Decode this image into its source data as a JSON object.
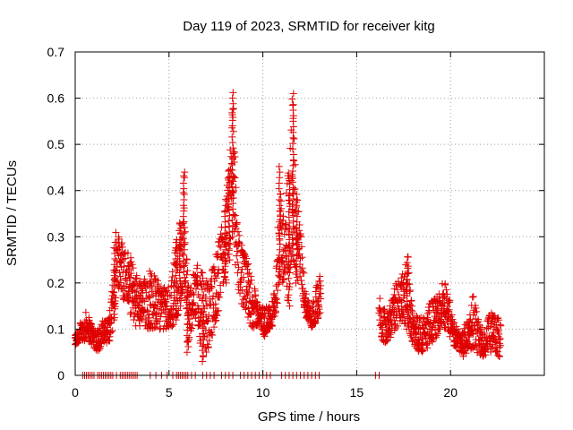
{
  "chart_data": {
    "type": "scatter",
    "title": "Day 119 of 2023, SRMTID for receiver kitg",
    "xlabel": "GPS time / hours",
    "ylabel": "SRMTID / TECUs",
    "xlim": [
      0,
      25
    ],
    "ylim": [
      0,
      0.7
    ],
    "grid": true,
    "marker": "+",
    "marker_color": "#e00000",
    "x_ticks": [
      0,
      5,
      10,
      15,
      20
    ],
    "y_ticks": [
      0,
      0.1,
      0.2,
      0.3,
      0.4,
      0.5,
      0.6,
      0.7
    ],
    "x_tick_labels": [
      "0",
      "5",
      "10",
      "15",
      "20"
    ],
    "y_tick_labels": [
      "0",
      "0.1",
      "0.2",
      "0.3",
      "0.4",
      "0.5",
      "0.6",
      "0.7"
    ],
    "series": [
      {
        "name": "SRMTID",
        "envelope": [
          [
            0.0,
            0.06,
            0.09
          ],
          [
            0.2,
            0.07,
            0.11
          ],
          [
            0.4,
            0.07,
            0.12
          ],
          [
            0.6,
            0.08,
            0.14
          ],
          [
            0.8,
            0.07,
            0.12
          ],
          [
            1.0,
            0.06,
            0.11
          ],
          [
            1.2,
            0.05,
            0.1
          ],
          [
            1.4,
            0.06,
            0.12
          ],
          [
            1.6,
            0.07,
            0.12
          ],
          [
            1.8,
            0.07,
            0.13
          ],
          [
            2.0,
            0.1,
            0.2
          ],
          [
            2.1,
            0.12,
            0.29
          ],
          [
            2.2,
            0.2,
            0.33
          ],
          [
            3.3,
            0.1,
            0.22
          ],
          [
            3.6,
            0.1,
            0.2
          ],
          [
            3.9,
            0.1,
            0.24
          ],
          [
            4.2,
            0.1,
            0.22
          ],
          [
            4.5,
            0.1,
            0.2
          ],
          [
            4.8,
            0.1,
            0.19
          ],
          [
            5.1,
            0.1,
            0.2
          ],
          [
            5.4,
            0.12,
            0.3
          ],
          [
            5.6,
            0.15,
            0.34
          ],
          [
            5.8,
            0.2,
            0.45
          ],
          [
            6.0,
            0.05,
            0.2
          ],
          [
            6.2,
            0.1,
            0.2
          ],
          [
            6.5,
            0.12,
            0.26
          ],
          [
            6.8,
            0.03,
            0.22
          ],
          [
            7.1,
            0.06,
            0.2
          ],
          [
            7.4,
            0.1,
            0.25
          ],
          [
            7.7,
            0.15,
            0.3
          ],
          [
            8.0,
            0.2,
            0.38
          ],
          [
            8.2,
            0.25,
            0.45
          ],
          [
            8.4,
            0.3,
            0.62
          ],
          [
            8.6,
            0.2,
            0.35
          ],
          [
            8.9,
            0.15,
            0.28
          ],
          [
            9.2,
            0.12,
            0.25
          ],
          [
            9.5,
            0.1,
            0.2
          ],
          [
            9.8,
            0.11,
            0.15
          ],
          [
            10.1,
            0.08,
            0.15
          ],
          [
            10.4,
            0.1,
            0.15
          ],
          [
            10.7,
            0.12,
            0.2
          ],
          [
            10.9,
            0.2,
            0.46
          ],
          [
            11.1,
            0.2,
            0.35
          ],
          [
            11.4,
            0.15,
            0.45
          ],
          [
            11.6,
            0.25,
            0.62
          ],
          [
            11.8,
            0.2,
            0.4
          ],
          [
            12.0,
            0.2,
            0.32
          ],
          [
            12.3,
            0.12,
            0.18
          ],
          [
            12.6,
            0.1,
            0.15
          ],
          [
            12.9,
            0.12,
            0.2
          ],
          [
            13.1,
            0.14,
            0.23
          ],
          [
            16.2,
            0.08,
            0.18
          ],
          [
            16.5,
            0.07,
            0.15
          ],
          [
            16.8,
            0.08,
            0.16
          ],
          [
            17.1,
            0.1,
            0.2
          ],
          [
            17.4,
            0.12,
            0.22
          ],
          [
            17.7,
            0.1,
            0.26
          ],
          [
            18.0,
            0.07,
            0.14
          ],
          [
            18.3,
            0.05,
            0.13
          ],
          [
            18.6,
            0.05,
            0.13
          ],
          [
            18.9,
            0.06,
            0.16
          ],
          [
            19.2,
            0.08,
            0.17
          ],
          [
            19.5,
            0.1,
            0.2
          ],
          [
            19.8,
            0.1,
            0.21
          ],
          [
            20.1,
            0.07,
            0.13
          ],
          [
            20.4,
            0.05,
            0.1
          ],
          [
            20.7,
            0.04,
            0.1
          ],
          [
            21.0,
            0.05,
            0.13
          ],
          [
            21.2,
            0.06,
            0.18
          ],
          [
            21.5,
            0.04,
            0.12
          ],
          [
            21.8,
            0.04,
            0.1
          ],
          [
            22.1,
            0.05,
            0.14
          ],
          [
            22.4,
            0.04,
            0.13
          ],
          [
            22.7,
            0.04,
            0.12
          ]
        ],
        "zero_values": [
          0.4,
          0.5,
          0.6,
          0.7,
          0.8,
          0.9,
          1.0,
          1.2,
          1.3,
          1.4,
          1.5,
          1.6,
          1.7,
          1.8,
          1.9,
          2.0,
          2.2,
          2.4,
          2.5,
          2.6,
          2.7,
          2.8,
          2.9,
          3.0,
          3.1,
          3.2,
          3.3,
          4.0,
          4.3,
          4.6,
          4.9,
          5.2,
          5.4,
          5.5,
          5.6,
          5.7,
          5.8,
          5.9,
          6.0,
          6.2,
          6.4,
          6.8,
          7.0,
          7.2,
          7.4,
          7.8,
          8.0,
          8.2,
          8.4,
          8.8,
          9.0,
          9.2,
          9.4,
          9.6,
          9.8,
          10.0,
          10.2,
          10.4,
          11.0,
          11.2,
          11.4,
          11.6,
          11.8,
          12.0,
          12.2,
          12.4,
          12.6,
          12.8,
          13.0,
          16.0,
          16.2
        ]
      }
    ]
  }
}
